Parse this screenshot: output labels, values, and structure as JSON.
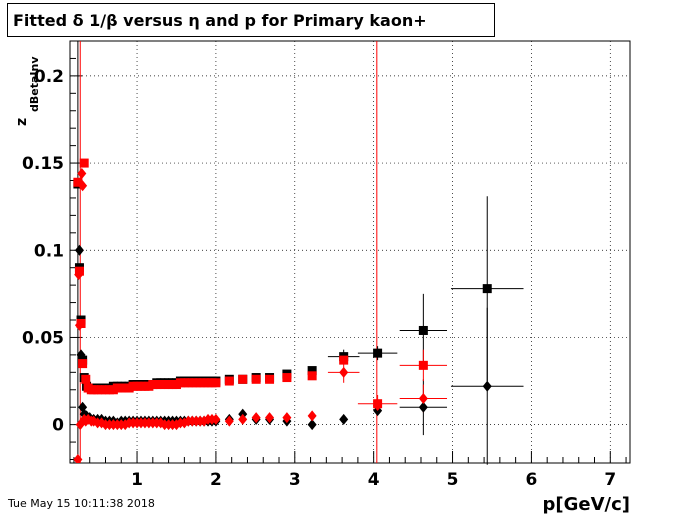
{
  "title": "Fitted δ 1/β versus η and p for Primary kaon+",
  "timestamp": "Tue May 15 10:11:38 2018",
  "colors": {
    "black_series": "#000000",
    "red_series": "#ff0000",
    "grid": "#000000",
    "frame": "#000000"
  },
  "chart_data": {
    "type": "scatter",
    "title": "Fitted δ 1/β versus η and p for Primary kaon+",
    "xlabel": "p[GeV/c]",
    "ylabel": "z",
    "ylabel_subscript": "dBetaInv",
    "xlim": [
      0.15,
      7.25
    ],
    "ylim": [
      -0.022,
      0.22
    ],
    "x_ticks": [
      1,
      2,
      3,
      4,
      5,
      6,
      7
    ],
    "x_tick_labels": [
      "1",
      "2",
      "3",
      "4",
      "5",
      "6",
      "7"
    ],
    "y_ticks": [
      0,
      0.05,
      0.1,
      0.15,
      0.2
    ],
    "y_tick_labels": [
      "0",
      "0.05",
      "0.1",
      "0.15",
      "0.2"
    ],
    "grid": true,
    "vertical_lines": [
      {
        "x": 0.25,
        "color": "black"
      },
      {
        "x": 0.28,
        "color": "red"
      },
      {
        "x": 4.04,
        "color": "red"
      }
    ],
    "series": [
      {
        "marker": "square",
        "color": "black",
        "points": [
          {
            "x": 0.25,
            "y": 0.138
          },
          {
            "x": 0.27,
            "y": 0.09
          },
          {
            "x": 0.29,
            "y": 0.06
          },
          {
            "x": 0.31,
            "y": 0.037
          },
          {
            "x": 0.33,
            "y": 0.027
          },
          {
            "x": 0.36,
            "y": 0.022
          },
          {
            "x": 0.4,
            "y": 0.021
          },
          {
            "x": 0.45,
            "y": 0.021
          },
          {
            "x": 0.5,
            "y": 0.021
          },
          {
            "x": 0.55,
            "y": 0.021
          },
          {
            "x": 0.6,
            "y": 0.021
          },
          {
            "x": 0.65,
            "y": 0.021
          },
          {
            "x": 0.7,
            "y": 0.022
          },
          {
            "x": 0.75,
            "y": 0.022
          },
          {
            "x": 0.8,
            "y": 0.022
          },
          {
            "x": 0.85,
            "y": 0.022
          },
          {
            "x": 0.9,
            "y": 0.022
          },
          {
            "x": 0.95,
            "y": 0.023
          },
          {
            "x": 1.0,
            "y": 0.023
          },
          {
            "x": 1.05,
            "y": 0.023
          },
          {
            "x": 1.1,
            "y": 0.023
          },
          {
            "x": 1.15,
            "y": 0.023
          },
          {
            "x": 1.2,
            "y": 0.023
          },
          {
            "x": 1.25,
            "y": 0.024
          },
          {
            "x": 1.3,
            "y": 0.024
          },
          {
            "x": 1.35,
            "y": 0.024
          },
          {
            "x": 1.4,
            "y": 0.024
          },
          {
            "x": 1.45,
            "y": 0.024
          },
          {
            "x": 1.5,
            "y": 0.024
          },
          {
            "x": 1.55,
            "y": 0.025
          },
          {
            "x": 1.6,
            "y": 0.025
          },
          {
            "x": 1.65,
            "y": 0.025
          },
          {
            "x": 1.7,
            "y": 0.025
          },
          {
            "x": 1.75,
            "y": 0.025
          },
          {
            "x": 1.8,
            "y": 0.025
          },
          {
            "x": 1.85,
            "y": 0.025
          },
          {
            "x": 1.9,
            "y": 0.025
          },
          {
            "x": 1.95,
            "y": 0.025
          },
          {
            "x": 2.0,
            "y": 0.025
          },
          {
            "x": 2.17,
            "y": 0.026
          },
          {
            "x": 2.34,
            "y": 0.026
          },
          {
            "x": 2.51,
            "y": 0.027
          },
          {
            "x": 2.68,
            "y": 0.027
          },
          {
            "x": 2.9,
            "y": 0.029
          },
          {
            "x": 3.22,
            "y": 0.031
          },
          {
            "x": 3.62,
            "y": 0.039
          },
          {
            "x": 4.05,
            "y": 0.041
          },
          {
            "x": 4.63,
            "y": 0.054
          },
          {
            "x": 5.44,
            "y": 0.078
          }
        ]
      },
      {
        "marker": "diamond",
        "color": "black",
        "points": [
          {
            "x": 0.27,
            "y": 0.1
          },
          {
            "x": 0.29,
            "y": 0.04
          },
          {
            "x": 0.31,
            "y": 0.01
          },
          {
            "x": 0.33,
            "y": 0.006
          },
          {
            "x": 0.36,
            "y": 0.005
          },
          {
            "x": 0.4,
            "y": 0.004
          },
          {
            "x": 0.45,
            "y": 0.003
          },
          {
            "x": 0.5,
            "y": 0.003
          },
          {
            "x": 0.55,
            "y": 0.003
          },
          {
            "x": 0.6,
            "y": 0.002
          },
          {
            "x": 0.65,
            "y": 0.002
          },
          {
            "x": 0.7,
            "y": 0.002
          },
          {
            "x": 0.75,
            "y": 0.001
          },
          {
            "x": 0.8,
            "y": 0.002
          },
          {
            "x": 0.85,
            "y": 0.002
          },
          {
            "x": 0.9,
            "y": 0.002
          },
          {
            "x": 0.95,
            "y": 0.002
          },
          {
            "x": 1.0,
            "y": 0.002
          },
          {
            "x": 1.05,
            "y": 0.002
          },
          {
            "x": 1.1,
            "y": 0.002
          },
          {
            "x": 1.15,
            "y": 0.002
          },
          {
            "x": 1.2,
            "y": 0.002
          },
          {
            "x": 1.25,
            "y": 0.002
          },
          {
            "x": 1.3,
            "y": 0.002
          },
          {
            "x": 1.35,
            "y": 0.002
          },
          {
            "x": 1.4,
            "y": 0.002
          },
          {
            "x": 1.45,
            "y": 0.002
          },
          {
            "x": 1.5,
            "y": 0.002
          },
          {
            "x": 1.55,
            "y": 0.002
          },
          {
            "x": 1.6,
            "y": 0.002
          },
          {
            "x": 1.65,
            "y": 0.002
          },
          {
            "x": 1.7,
            "y": 0.002
          },
          {
            "x": 1.75,
            "y": 0.002
          },
          {
            "x": 1.8,
            "y": 0.002
          },
          {
            "x": 1.85,
            "y": 0.002
          },
          {
            "x": 1.9,
            "y": 0.002
          },
          {
            "x": 1.95,
            "y": 0.002
          },
          {
            "x": 2.0,
            "y": 0.002
          },
          {
            "x": 2.17,
            "y": 0.003
          },
          {
            "x": 2.34,
            "y": 0.006
          },
          {
            "x": 2.51,
            "y": 0.003
          },
          {
            "x": 2.68,
            "y": 0.003
          },
          {
            "x": 2.9,
            "y": 0.002
          },
          {
            "x": 3.22,
            "y": 0.0
          },
          {
            "x": 3.62,
            "y": 0.003
          },
          {
            "x": 4.05,
            "y": 0.008
          },
          {
            "x": 4.63,
            "y": 0.01
          },
          {
            "x": 5.44,
            "y": 0.022
          }
        ]
      },
      {
        "marker": "square",
        "color": "red",
        "points": [
          {
            "x": 0.25,
            "y": 0.139
          },
          {
            "x": 0.27,
            "y": 0.088
          },
          {
            "x": 0.29,
            "y": 0.058
          },
          {
            "x": 0.31,
            "y": 0.035
          },
          {
            "x": 0.33,
            "y": 0.15
          },
          {
            "x": 0.35,
            "y": 0.026
          },
          {
            "x": 0.38,
            "y": 0.021
          },
          {
            "x": 0.42,
            "y": 0.02
          },
          {
            "x": 0.45,
            "y": 0.02
          },
          {
            "x": 0.5,
            "y": 0.02
          },
          {
            "x": 0.55,
            "y": 0.02
          },
          {
            "x": 0.6,
            "y": 0.02
          },
          {
            "x": 0.65,
            "y": 0.02
          },
          {
            "x": 0.7,
            "y": 0.02
          },
          {
            "x": 0.75,
            "y": 0.021
          },
          {
            "x": 0.8,
            "y": 0.021
          },
          {
            "x": 0.85,
            "y": 0.021
          },
          {
            "x": 0.9,
            "y": 0.021
          },
          {
            "x": 0.95,
            "y": 0.022
          },
          {
            "x": 1.0,
            "y": 0.022
          },
          {
            "x": 1.05,
            "y": 0.022
          },
          {
            "x": 1.1,
            "y": 0.022
          },
          {
            "x": 1.15,
            "y": 0.022
          },
          {
            "x": 1.2,
            "y": 0.023
          },
          {
            "x": 1.25,
            "y": 0.023
          },
          {
            "x": 1.3,
            "y": 0.023
          },
          {
            "x": 1.35,
            "y": 0.023
          },
          {
            "x": 1.4,
            "y": 0.023
          },
          {
            "x": 1.45,
            "y": 0.023
          },
          {
            "x": 1.5,
            "y": 0.023
          },
          {
            "x": 1.55,
            "y": 0.024
          },
          {
            "x": 1.6,
            "y": 0.024
          },
          {
            "x": 1.65,
            "y": 0.024
          },
          {
            "x": 1.7,
            "y": 0.024
          },
          {
            "x": 1.75,
            "y": 0.024
          },
          {
            "x": 1.8,
            "y": 0.024
          },
          {
            "x": 1.85,
            "y": 0.024
          },
          {
            "x": 1.9,
            "y": 0.024
          },
          {
            "x": 1.95,
            "y": 0.024
          },
          {
            "x": 2.0,
            "y": 0.024
          },
          {
            "x": 2.17,
            "y": 0.025
          },
          {
            "x": 2.34,
            "y": 0.026
          },
          {
            "x": 2.51,
            "y": 0.026
          },
          {
            "x": 2.68,
            "y": 0.026
          },
          {
            "x": 2.9,
            "y": 0.027
          },
          {
            "x": 3.22,
            "y": 0.028
          },
          {
            "x": 3.62,
            "y": 0.037
          },
          {
            "x": 4.05,
            "y": 0.012
          },
          {
            "x": 4.63,
            "y": 0.034
          }
        ]
      },
      {
        "marker": "diamond",
        "color": "red",
        "points": [
          {
            "x": 0.25,
            "y": -0.02
          },
          {
            "x": 0.26,
            "y": 0.086
          },
          {
            "x": 0.27,
            "y": 0.057
          },
          {
            "x": 0.28,
            "y": 0.0
          },
          {
            "x": 0.3,
            "y": 0.144
          },
          {
            "x": 0.31,
            "y": 0.137
          },
          {
            "x": 0.33,
            "y": 0.003
          },
          {
            "x": 0.35,
            "y": 0.002
          },
          {
            "x": 0.38,
            "y": 0.003
          },
          {
            "x": 0.42,
            "y": 0.002
          },
          {
            "x": 0.45,
            "y": 0.002
          },
          {
            "x": 0.5,
            "y": 0.001
          },
          {
            "x": 0.55,
            "y": 0.001
          },
          {
            "x": 0.6,
            "y": 0.0
          },
          {
            "x": 0.65,
            "y": 0.0
          },
          {
            "x": 0.7,
            "y": 0.0
          },
          {
            "x": 0.75,
            "y": 0.0
          },
          {
            "x": 0.8,
            "y": 0.0
          },
          {
            "x": 0.85,
            "y": 0.0
          },
          {
            "x": 0.9,
            "y": 0.001
          },
          {
            "x": 0.95,
            "y": 0.001
          },
          {
            "x": 1.0,
            "y": 0.001
          },
          {
            "x": 1.05,
            "y": 0.001
          },
          {
            "x": 1.1,
            "y": 0.001
          },
          {
            "x": 1.15,
            "y": 0.001
          },
          {
            "x": 1.2,
            "y": 0.001
          },
          {
            "x": 1.25,
            "y": 0.001
          },
          {
            "x": 1.3,
            "y": 0.001
          },
          {
            "x": 1.35,
            "y": 0.0
          },
          {
            "x": 1.4,
            "y": 0.0
          },
          {
            "x": 1.45,
            "y": 0.0
          },
          {
            "x": 1.5,
            "y": 0.0
          },
          {
            "x": 1.55,
            "y": 0.001
          },
          {
            "x": 1.6,
            "y": 0.001
          },
          {
            "x": 1.65,
            "y": 0.002
          },
          {
            "x": 1.7,
            "y": 0.002
          },
          {
            "x": 1.75,
            "y": 0.002
          },
          {
            "x": 1.8,
            "y": 0.002
          },
          {
            "x": 1.85,
            "y": 0.002
          },
          {
            "x": 1.9,
            "y": 0.003
          },
          {
            "x": 1.95,
            "y": 0.003
          },
          {
            "x": 2.0,
            "y": 0.003
          },
          {
            "x": 2.17,
            "y": 0.002
          },
          {
            "x": 2.34,
            "y": 0.003
          },
          {
            "x": 2.51,
            "y": 0.004
          },
          {
            "x": 2.68,
            "y": 0.004
          },
          {
            "x": 2.9,
            "y": 0.004
          },
          {
            "x": 3.22,
            "y": 0.005
          },
          {
            "x": 3.62,
            "y": 0.03
          },
          {
            "x": 4.05,
            "y": 0.011
          },
          {
            "x": 4.63,
            "y": 0.015
          }
        ]
      }
    ],
    "error_bars": [
      {
        "x": 3.62,
        "y": 0.039,
        "xerr": 0.2,
        "yerr": 0.004,
        "color": "black"
      },
      {
        "x": 4.05,
        "y": 0.041,
        "xerr": 0.25,
        "yerr": 0.004,
        "color": "black"
      },
      {
        "x": 4.63,
        "y": 0.054,
        "xerr": 0.3,
        "yerr": 0.021,
        "color": "black"
      },
      {
        "x": 5.44,
        "y": 0.078,
        "xerr": 0.46,
        "yerr": 0.053,
        "color": "black"
      },
      {
        "x": 4.63,
        "y": 0.01,
        "xerr": 0.3,
        "yerr": 0.016,
        "color": "black"
      },
      {
        "x": 5.44,
        "y": 0.022,
        "xerr": 0.46,
        "yerr": 0.045,
        "color": "black"
      },
      {
        "x": 3.62,
        "y": 0.03,
        "xerr": 0.2,
        "yerr": 0.006,
        "color": "red"
      },
      {
        "x": 4.05,
        "y": 0.012,
        "xerr": 0.25,
        "yerr": 0.005,
        "color": "red"
      },
      {
        "x": 4.63,
        "y": 0.034,
        "xerr": 0.3,
        "yerr": 0.009,
        "color": "red"
      },
      {
        "x": 4.63,
        "y": 0.015,
        "xerr": 0.3,
        "yerr": 0.008,
        "color": "red"
      }
    ]
  }
}
